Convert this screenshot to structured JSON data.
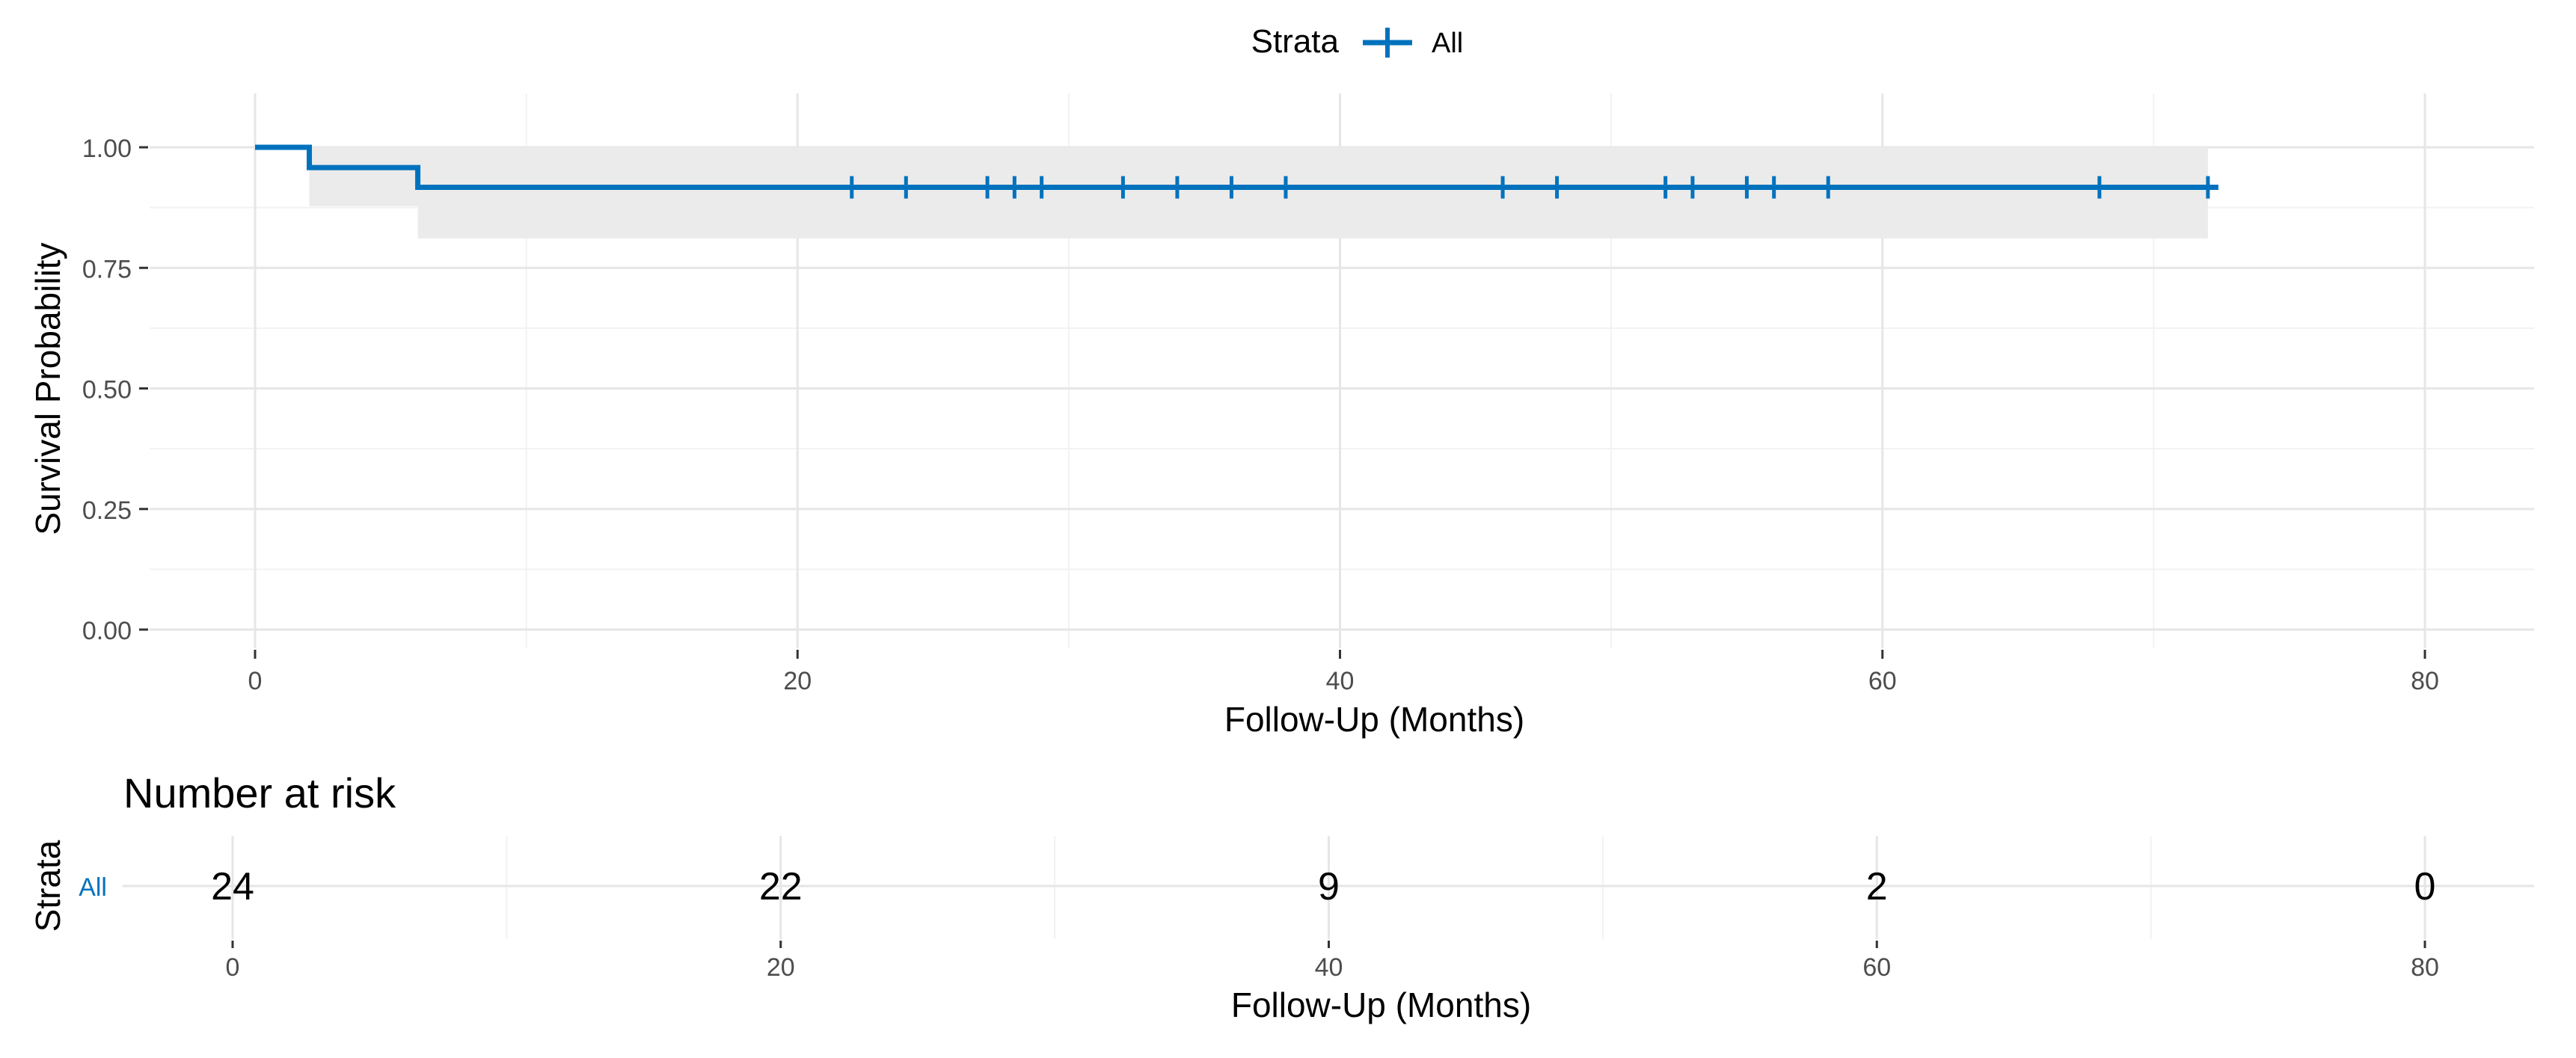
{
  "legend": {
    "title": "Strata",
    "items": [
      {
        "label": "All",
        "color": "#0072BD"
      }
    ]
  },
  "colors": {
    "curve": "#0072BD",
    "ci_band": "#EBEBEB",
    "grid_major": "#E6E6E6",
    "grid_minor": "#F2F2F2",
    "text": "#000000",
    "tick_text": "#4D4D4D"
  },
  "chart_data": [
    {
      "type": "line",
      "subtype": "kaplan-meier",
      "ylabel": "Survival Probability",
      "xlabel": "Follow-Up (Months)",
      "xlim": [
        0,
        80
      ],
      "ylim": [
        0,
        1
      ],
      "x_ticks": [
        0,
        20,
        40,
        60,
        80
      ],
      "y_ticks": [
        0,
        0.25,
        0.5,
        0.75,
        1
      ],
      "y_tick_labels": [
        "0.00",
        "0.25",
        "0.50",
        "0.75",
        "1.00"
      ],
      "grid": true,
      "legend_position": "top",
      "series": [
        {
          "name": "All",
          "step_x": [
            0,
            2,
            6,
            72
          ],
          "step_y": [
            1.0,
            0.958,
            0.917,
            0.917
          ],
          "ci_lower": [
            1.0,
            0.878,
            0.811,
            0.811
          ],
          "ci_upper": [
            1.0,
            1.0,
            1.0,
            1.0
          ],
          "censor_times": [
            22,
            24,
            27,
            28,
            29,
            32,
            34,
            36,
            38,
            46,
            48,
            52,
            53,
            55,
            56,
            58,
            68,
            72
          ],
          "censor_y": 0.917
        }
      ]
    },
    {
      "type": "table",
      "title": "Number at risk",
      "ylabel": "Strata",
      "xlabel": "Follow-Up (Months)",
      "row_label": "All",
      "x": [
        0,
        20,
        40,
        60,
        80
      ],
      "values": [
        24,
        22,
        9,
        2,
        0
      ],
      "x_tick_labels": [
        "0",
        "20",
        "40",
        "60",
        "80"
      ]
    }
  ]
}
